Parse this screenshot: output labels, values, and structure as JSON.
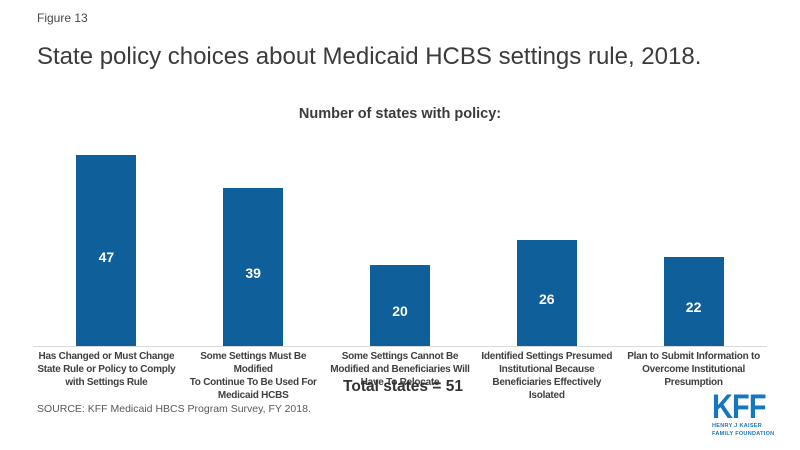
{
  "page": {
    "figure_label": "Figure 13",
    "title": "State policy choices about Medicaid HCBS settings rule, 2018.",
    "source": "SOURCE:  KFF Medicaid HBCS Program Survey,  FY 2018."
  },
  "chart_data": {
    "type": "bar",
    "title": "Number of states with policy:",
    "categories": [
      "Has Changed or Must Change\nState Rule or Policy to Comply\nwith Settings Rule",
      "Some Settings Must Be Modified\nTo Continue To Be Used For\nMedicaid HCBS",
      "Some Settings Cannot Be\nModified and Beneficiaries Will\nHave To Relocate",
      "Identified Settings Presumed\nInstitutional Because\nBeneficiaries Effectively Isolated",
      "Plan to Submit Information to\nOvercome Institutional\nPresumption"
    ],
    "values": [
      47,
      39,
      20,
      26,
      22
    ],
    "ylim": [
      0,
      50
    ],
    "grid": false,
    "legend_position": "none",
    "bar_color": "#0E5F9A",
    "value_label_color": "#FFFFFF",
    "annotation": "Total states = 51"
  },
  "logo": {
    "kff": "KFF",
    "line1": "HENRY J KAISER",
    "line2": "FAMILY FOUNDATION",
    "color": "#1577BC"
  },
  "colors": {
    "bar": "#0E5F9A",
    "title_text": "#3B3B3B",
    "category_label": "#404040",
    "source_text": "#595959",
    "axis_line": "#D9D9D9",
    "logo_blue": "#1577BC",
    "background": "#FFFFFF"
  }
}
